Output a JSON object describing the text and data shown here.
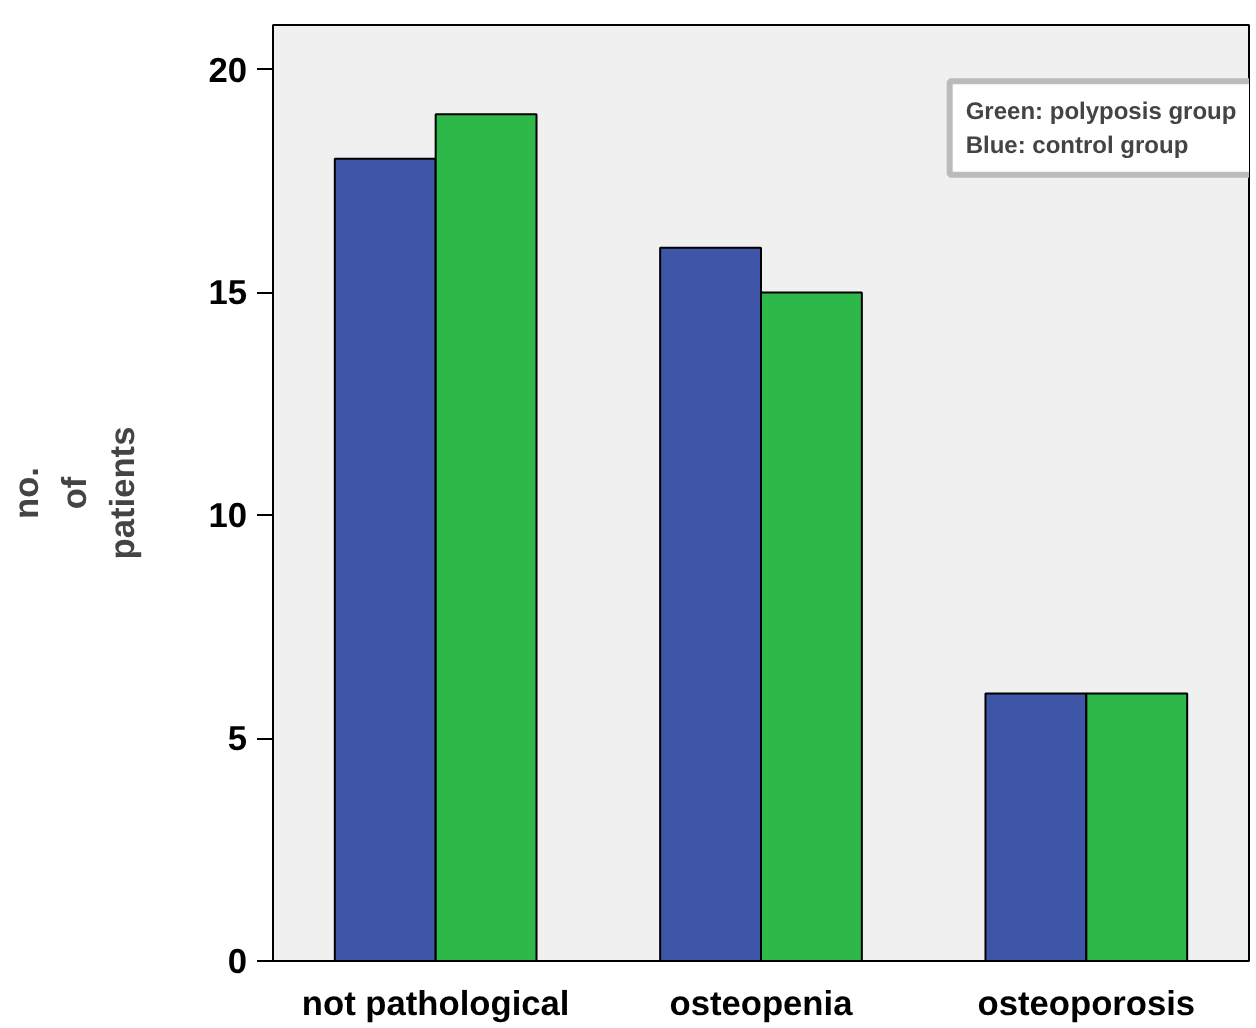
{
  "chart_data": {
    "type": "bar",
    "categories": [
      "not pathological",
      "osteopenia",
      "osteoporosis"
    ],
    "series": [
      {
        "color": "#3f55a8",
        "values": [
          18,
          16,
          6
        ]
      },
      {
        "color": "#2fb84a",
        "values": [
          19,
          15,
          6
        ]
      }
    ],
    "ylabel": "no.\nof\npatients",
    "ylim": [
      0,
      21
    ],
    "yticks": [
      0,
      5,
      10,
      15,
      20
    ],
    "grid": false,
    "annotations": [
      "Green: polyposis group\nBlue: control group"
    ]
  }
}
